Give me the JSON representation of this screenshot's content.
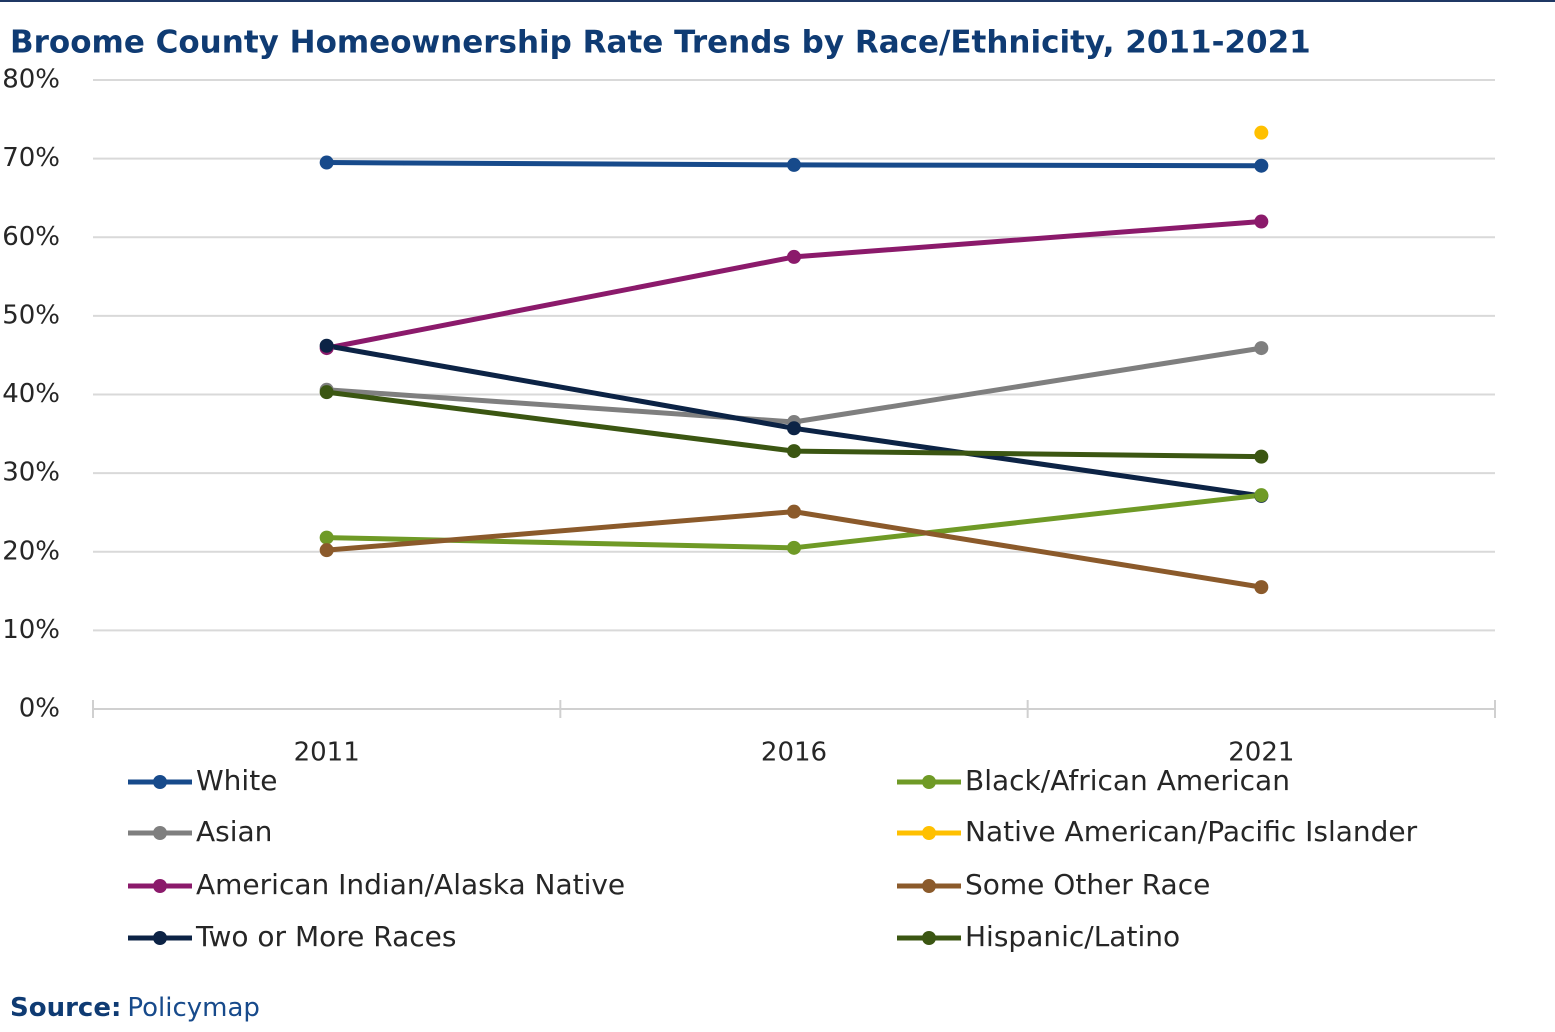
{
  "chart_data": {
    "type": "line",
    "title": "Broome County Homeownership Rate Trends by Race/Ethnicity, 2011-2021",
    "categories": [
      "2011",
      "2016",
      "2021"
    ],
    "series": [
      {
        "name": "White",
        "color": "#174a8b",
        "values": [
          69.5,
          69.2,
          69.1
        ]
      },
      {
        "name": "Asian",
        "color": "#7f7f7f",
        "values": [
          40.6,
          36.5,
          45.9
        ]
      },
      {
        "name": "American Indian/Alaska Native",
        "color": "#8b1a6b",
        "values": [
          45.9,
          57.5,
          62.0
        ]
      },
      {
        "name": "Two or More Races",
        "color": "#0c2345",
        "values": [
          46.2,
          35.7,
          27.1
        ]
      },
      {
        "name": "Black/African American",
        "color": "#6f9a26",
        "values": [
          21.8,
          20.5,
          27.2
        ]
      },
      {
        "name": "Native American/Pacific Islander",
        "color": "#ffc000",
        "values": [
          null,
          null,
          73.3
        ]
      },
      {
        "name": "Some Other Race",
        "color": "#8b5a2b",
        "values": [
          20.2,
          25.1,
          15.5
        ]
      },
      {
        "name": "Hispanic/Latino",
        "color": "#3b5612",
        "values": [
          40.3,
          32.8,
          32.1
        ]
      }
    ],
    "ylim": [
      0,
      80
    ],
    "yticks": [
      {
        "value": 0,
        "label": "0%"
      },
      {
        "value": 10,
        "label": "10%"
      },
      {
        "value": 20,
        "label": "20%"
      },
      {
        "value": 30,
        "label": "30%"
      },
      {
        "value": 40,
        "label": "40%"
      },
      {
        "value": 50,
        "label": "50%"
      },
      {
        "value": 60,
        "label": "60%"
      },
      {
        "value": 70,
        "label": "70%"
      },
      {
        "value": 80,
        "label": "80%"
      }
    ],
    "grid": true,
    "legend": "bottom",
    "source_label": "Source:",
    "source": "Policymap"
  }
}
